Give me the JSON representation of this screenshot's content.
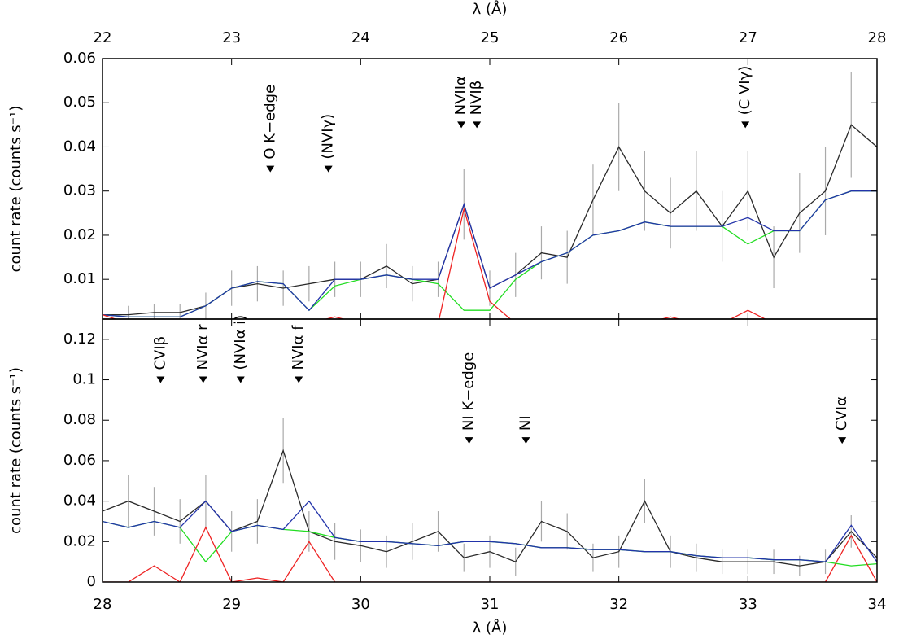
{
  "chart_data": [
    {
      "type": "line",
      "xlabel": "λ (Å)",
      "ylabel": "count rate (counts s⁻¹)",
      "xlim": [
        22,
        28
      ],
      "xticks": [
        22,
        23,
        24,
        25,
        26,
        27,
        28
      ],
      "ylim": [
        0.001,
        0.06
      ],
      "yticks": [
        0.01,
        0.02,
        0.03,
        0.04,
        0.05,
        0.06
      ],
      "x": [
        22.0,
        22.2,
        22.4,
        22.6,
        22.8,
        23.0,
        23.2,
        23.4,
        23.6,
        23.8,
        24.0,
        24.2,
        24.4,
        24.6,
        24.8,
        25.0,
        25.2,
        25.4,
        25.6,
        25.8,
        26.0,
        26.2,
        26.4,
        26.6,
        26.8,
        27.0,
        27.2,
        27.4,
        27.6,
        27.8,
        28.0
      ],
      "series": [
        {
          "color": "#2a2a2a",
          "values": [
            0.002,
            0.002,
            0.0025,
            0.0025,
            0.004,
            0.008,
            0.009,
            0.008,
            0.009,
            0.01,
            0.01,
            0.013,
            0.009,
            0.01,
            0.027,
            0.008,
            0.011,
            0.016,
            0.015,
            0.028,
            0.04,
            0.03,
            0.025,
            0.03,
            0.022,
            0.03,
            0.015,
            0.025,
            0.03,
            0.045,
            0.04
          ],
          "errors": [
            0.002,
            0.002,
            0.002,
            0.002,
            0.003,
            0.004,
            0.004,
            0.004,
            0.004,
            0.004,
            0.004,
            0.005,
            0.004,
            0.004,
            0.008,
            0.004,
            0.005,
            0.006,
            0.006,
            0.008,
            0.01,
            0.009,
            0.008,
            0.009,
            0.008,
            0.009,
            0.007,
            0.009,
            0.01,
            0.012,
            0.012
          ]
        },
        {
          "color": "#22dd22",
          "values": [
            0.002,
            0.0015,
            0.0015,
            0.0015,
            0.004,
            0.008,
            0.0095,
            0.009,
            0.003,
            0.0085,
            0.01,
            0.011,
            0.01,
            0.009,
            0.003,
            0.003,
            0.01,
            0.014,
            0.016,
            0.02,
            0.021,
            0.023,
            0.022,
            0.022,
            0.022,
            0.018,
            0.021,
            0.021,
            0.028,
            0.03,
            0.03
          ]
        },
        {
          "color": "#2233aa",
          "values": [
            0.002,
            0.0015,
            0.0015,
            0.0015,
            0.004,
            0.008,
            0.0095,
            0.009,
            0.003,
            0.01,
            0.01,
            0.011,
            0.01,
            0.01,
            0.027,
            0.008,
            0.011,
            0.014,
            0.016,
            0.02,
            0.021,
            0.023,
            0.022,
            0.022,
            0.022,
            0.024,
            0.021,
            0.021,
            0.028,
            0.03,
            0.03
          ]
        },
        {
          "color": "#ee2222",
          "values": [
            0.002,
            0.0,
            0.0,
            0.0,
            0.0,
            0.0,
            0.0,
            0.0,
            0.0,
            0.0015,
            0.0,
            0.0,
            0.0,
            0.0,
            0.026,
            0.005,
            0.0,
            0.0,
            0.0,
            0.0,
            0.0,
            0.0,
            0.0015,
            0.0,
            0.0,
            0.003,
            0.0,
            0.0,
            0.0,
            0.0,
            0.0
          ]
        }
      ],
      "annotations": [
        {
          "text": "O K−edge",
          "x": 23.3,
          "y": 0.035
        },
        {
          "text": "(NVIγ)",
          "x": 23.75,
          "y": 0.035
        },
        {
          "text": "NVIIα",
          "x": 24.78,
          "y": 0.045
        },
        {
          "text": "NVIβ",
          "x": 24.9,
          "y": 0.045
        },
        {
          "text": "(C VIγ)",
          "x": 26.98,
          "y": 0.045
        }
      ]
    },
    {
      "type": "line",
      "xlabel": "λ (Å)",
      "ylabel": "count rate (counts s⁻¹)",
      "xlim": [
        28,
        34
      ],
      "xticks": [
        28,
        29,
        30,
        31,
        32,
        33,
        34
      ],
      "ylim": [
        0,
        0.13
      ],
      "yticks": [
        0,
        0.02,
        0.04,
        0.06,
        0.08,
        0.1,
        0.12
      ],
      "x": [
        28.0,
        28.2,
        28.4,
        28.6,
        28.8,
        29.0,
        29.2,
        29.4,
        29.6,
        29.8,
        30.0,
        30.2,
        30.4,
        30.6,
        30.8,
        31.0,
        31.2,
        31.4,
        31.6,
        31.8,
        32.0,
        32.2,
        32.4,
        32.6,
        32.8,
        33.0,
        33.2,
        33.4,
        33.6,
        33.8,
        34.0
      ],
      "series": [
        {
          "color": "#2a2a2a",
          "values": [
            0.035,
            0.04,
            0.035,
            0.03,
            0.04,
            0.025,
            0.03,
            0.065,
            0.025,
            0.02,
            0.018,
            0.015,
            0.02,
            0.025,
            0.012,
            0.015,
            0.01,
            0.03,
            0.025,
            0.012,
            0.015,
            0.04,
            0.015,
            0.012,
            0.01,
            0.01,
            0.01,
            0.008,
            0.01,
            0.025,
            0.012
          ],
          "errors": [
            0.012,
            0.013,
            0.012,
            0.011,
            0.013,
            0.01,
            0.011,
            0.016,
            0.01,
            0.009,
            0.008,
            0.008,
            0.009,
            0.01,
            0.007,
            0.008,
            0.007,
            0.01,
            0.009,
            0.007,
            0.008,
            0.011,
            0.008,
            0.007,
            0.006,
            0.006,
            0.006,
            0.005,
            0.006,
            0.008,
            0.006
          ]
        },
        {
          "color": "#22dd22",
          "values": [
            0.03,
            0.027,
            0.03,
            0.027,
            0.01,
            0.025,
            0.028,
            0.026,
            0.025,
            0.022,
            0.02,
            0.02,
            0.019,
            0.018,
            0.02,
            0.02,
            0.019,
            0.017,
            0.017,
            0.016,
            0.016,
            0.015,
            0.015,
            0.013,
            0.012,
            0.012,
            0.011,
            0.011,
            0.01,
            0.008,
            0.009
          ]
        },
        {
          "color": "#2233aa",
          "values": [
            0.03,
            0.027,
            0.03,
            0.027,
            0.04,
            0.025,
            0.028,
            0.026,
            0.04,
            0.022,
            0.02,
            0.02,
            0.019,
            0.018,
            0.02,
            0.02,
            0.019,
            0.017,
            0.017,
            0.016,
            0.016,
            0.015,
            0.015,
            0.013,
            0.012,
            0.012,
            0.011,
            0.011,
            0.01,
            0.028,
            0.01
          ]
        },
        {
          "color": "#ee2222",
          "values": [
            0.0,
            0.0,
            0.008,
            0.0,
            0.027,
            0.0,
            0.002,
            0.0,
            0.02,
            0.0,
            0.0,
            0.0,
            0.0,
            0.0,
            0.0,
            0.0,
            0.0,
            0.0,
            0.0,
            0.0,
            0.0,
            0.0,
            0.0,
            0.0,
            0.0,
            0.0,
            0.0,
            0.0,
            0.0,
            0.023,
            0.0
          ]
        }
      ],
      "annotations": [
        {
          "text": "CVIβ",
          "x": 28.45,
          "y": 0.1
        },
        {
          "text": "NVIα r",
          "x": 28.78,
          "y": 0.1
        },
        {
          "text": "(NVIα i)",
          "x": 29.07,
          "y": 0.1
        },
        {
          "text": "NVIα f",
          "x": 29.52,
          "y": 0.1
        },
        {
          "text": "NI K−edge",
          "x": 30.84,
          "y": 0.07
        },
        {
          "text": "NI",
          "x": 31.28,
          "y": 0.07
        },
        {
          "text": "CVIα",
          "x": 33.73,
          "y": 0.07
        }
      ]
    }
  ]
}
